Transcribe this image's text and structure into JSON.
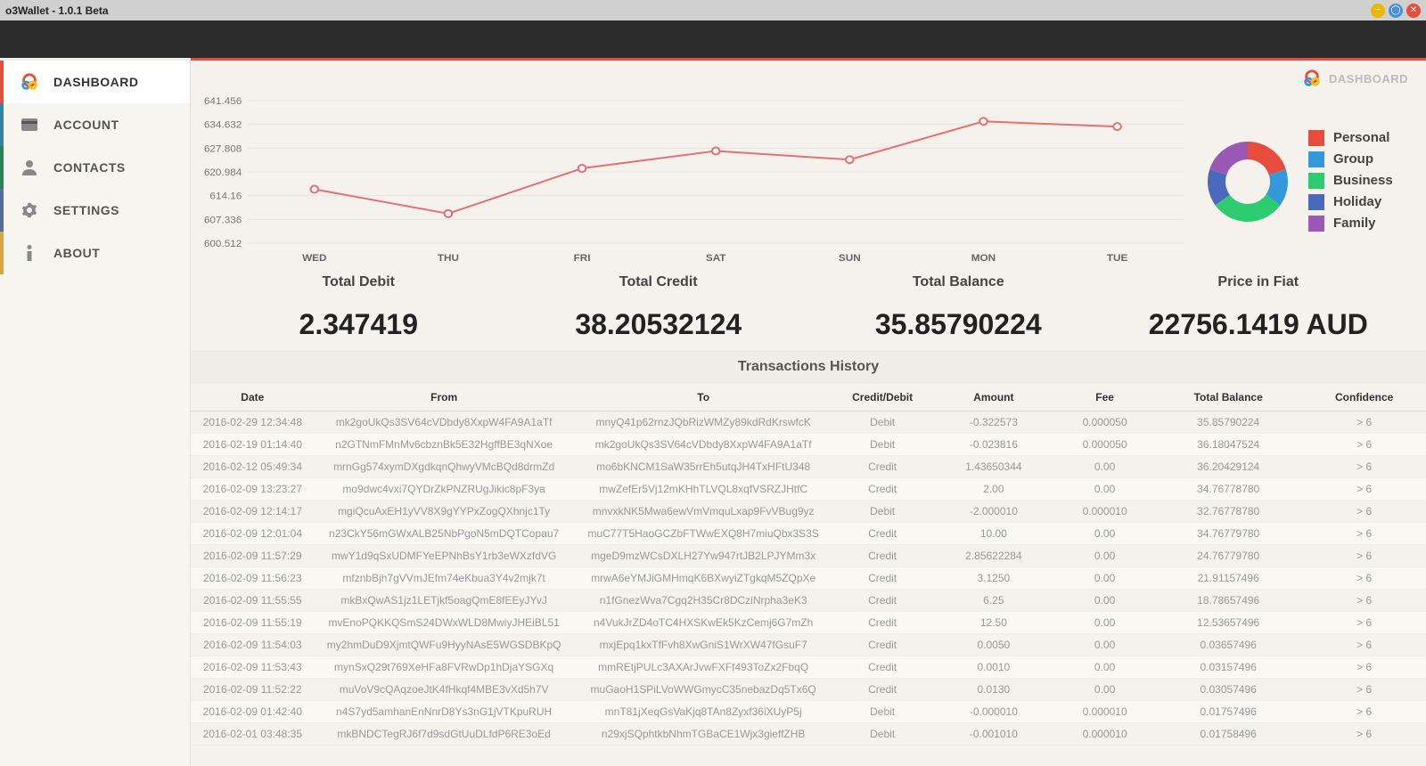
{
  "window": {
    "title": "o3Wallet - 1.0.1 Beta"
  },
  "sidebar": {
    "items": [
      {
        "label": "DASHBOARD",
        "active": true
      },
      {
        "label": "ACCOUNT"
      },
      {
        "label": "CONTACTS"
      },
      {
        "label": "SETTINGS"
      },
      {
        "label": "ABOUT"
      }
    ]
  },
  "breadcrumb": {
    "label": "DASHBOARD"
  },
  "line_chart": {
    "type": "line",
    "y_ticks": [
      600.512,
      607.336,
      614.16,
      620.984,
      627.808,
      634.632,
      641.456
    ],
    "x_labels": [
      "WED",
      "THU",
      "FRI",
      "SAT",
      "SUN",
      "MON",
      "TUE"
    ],
    "values": [
      616,
      609,
      622,
      627,
      624.5,
      635.5,
      634
    ],
    "line_color": "#e67074",
    "marker_fill": "#ffffff",
    "marker_stroke": "#e67074",
    "grid_color": "#e8e5de",
    "background": "#f5f2ed"
  },
  "donut": {
    "segments": [
      {
        "label": "Personal",
        "value": 20,
        "color": "#e74c3c"
      },
      {
        "label": "Group",
        "value": 15,
        "color": "#3498db"
      },
      {
        "label": "Business",
        "value": 30,
        "color": "#2ecc71"
      },
      {
        "label": "Holiday",
        "value": 15,
        "color": "#4a69bd"
      },
      {
        "label": "Family",
        "value": 20,
        "color": "#9b59b6"
      }
    ]
  },
  "stats": [
    {
      "label": "Total Debit",
      "value": "2.347419"
    },
    {
      "label": "Total Credit",
      "value": "38.20532124"
    },
    {
      "label": "Total Balance",
      "value": "35.85790224"
    },
    {
      "label": "Price in Fiat",
      "value": "22756.1419 AUD"
    }
  ],
  "tx": {
    "title": "Transactions History",
    "columns": [
      "Date",
      "From",
      "To",
      "Credit/Debit",
      "Amount",
      "Fee",
      "Total Balance",
      "Confidence"
    ],
    "col_widths": [
      "10%",
      "21%",
      "21%",
      "8%",
      "10%",
      "8%",
      "12%",
      "10%"
    ],
    "rows": [
      [
        "2016-02-29 12:34:48",
        "mk2goUkQs3SV64cVDbdy8XxpW4FA9A1aTf",
        "mnyQ41p62rnzJQbRizWMZy89kdRdKrswfcK",
        "Debit",
        "-0.322573",
        "0.000050",
        "35.85790224",
        "> 6"
      ],
      [
        "2016-02-19 01:14:40",
        "n2GTNmFMnMv6cbznBk5E32HgffBE3qNXoe",
        "mk2goUkQs3SV64cVDbdy8XxpW4FA9A1aTf",
        "Debit",
        "-0.023816",
        "0.000050",
        "36.18047524",
        "> 6"
      ],
      [
        "2016-02-12 05:49:34",
        "mrnGg574xymDXgdkqnQhwyVMcBQd8drmZd",
        "mo6bKNCM1SaW35rrEh5utqJH4TxHFtU348",
        "Credit",
        "1.43650344",
        "0.00",
        "36.20429124",
        "> 6"
      ],
      [
        "2016-02-09 13:23:27",
        "mo9dwc4vxi7QYDrZkPNZRUgJikic8pF3ya",
        "mwZefEr5Vj12mKHhTLVQL8xqfVSRZJHtfC",
        "Credit",
        "2.00",
        "0.00",
        "34.76778780",
        "> 6"
      ],
      [
        "2016-02-09 12:14:17",
        "mgiQcuAxEH1yVV8X9gYYPxZogQXhnjc1Ty",
        "mnvxkNK5Mwa6ewVmVmquLxap9FvVBug9yz",
        "Debit",
        "-2.000010",
        "0.000010",
        "32.76778780",
        "> 6"
      ],
      [
        "2016-02-09 12:01:04",
        "n23CkY56mGWxALB25NbPgoN5mDQTCopau7",
        "muC77T5HaoGCZbFTWwEXQ8H7miuQbx3S3S",
        "Credit",
        "10.00",
        "0.00",
        "34.76779780",
        "> 6"
      ],
      [
        "2016-02-09 11:57:29",
        "mwY1d9qSxUDMFYeEPNhBsY1rb3eWXzfdVG",
        "mgeD9mzWCsDXLH27Yw947rtJB2LPJYMm3x",
        "Credit",
        "2.85622284",
        "0.00",
        "24.76779780",
        "> 6"
      ],
      [
        "2016-02-09 11:56:23",
        "mfznbBjh7gVVmJEfm74eKbua3Y4v2mjk7t",
        "mrwA6eYMJiGMHmqK6BXwyiZTgkqM5ZQpXe",
        "Credit",
        "3.1250",
        "0.00",
        "21.91157496",
        "> 6"
      ],
      [
        "2016-02-09 11:55:55",
        "mkBxQwAS1jz1LETjkf5oagQmE8fEEyJYvJ",
        "n1fGnezWva7Cgq2H35Cr8DCziNrpha3eK3",
        "Credit",
        "6.25",
        "0.00",
        "18.78657496",
        "> 6"
      ],
      [
        "2016-02-09 11:55:19",
        "mvEnoPQKKQSmS24DWxWLD8MwiyJHEiBL51",
        "n4VukJrZD4oTC4HXSKwEk5KzCemj6G7mZh",
        "Credit",
        "12.50",
        "0.00",
        "12.53657496",
        "> 6"
      ],
      [
        "2016-02-09 11:54:03",
        "my2hmDuD9XjmtQWFu9HyyNAsE5WGSDBKpQ",
        "mxjEpq1kxTfFvh8XwGniS1WrXW47fGsuF7",
        "Credit",
        "0.0050",
        "0.00",
        "0.03657496",
        "> 6"
      ],
      [
        "2016-02-09 11:53:43",
        "mynSxQ29t769XeHFa8FVRwDp1hDjaYSGXq",
        "mmREtjPULc3AXArJvwFXFf493ToZx2FbqQ",
        "Credit",
        "0.0010",
        "0.00",
        "0.03157496",
        "> 6"
      ],
      [
        "2016-02-09 11:52:22",
        "muVoV9cQAqzoeJtK4fHkqf4MBE3vXd5h7V",
        "muGaoH1SPiLVoWWGmycC35nebazDq5Tx6Q",
        "Credit",
        "0.0130",
        "0.00",
        "0.03057496",
        "> 6"
      ],
      [
        "2016-02-09 01:42:40",
        "n4S7yd5amhanEnNnrD8Ys3nG1jVTKpuRUH",
        "mnT81jXeqGsVaKjq8TAn8Zyxf36iXUyP5j",
        "Debit",
        "-0.000010",
        "0.000010",
        "0.01757496",
        "> 6"
      ],
      [
        "2016-02-01 03:48:35",
        "mkBNDCTegRJ6f7d9sdGtUuDLfdP6RE3oEd",
        "n29xjSQphtkbNhmTGBaCE1Wjx3gieffZHB",
        "Debit",
        "-0.001010",
        "0.000010",
        "0.01758496",
        "> 6"
      ]
    ]
  }
}
